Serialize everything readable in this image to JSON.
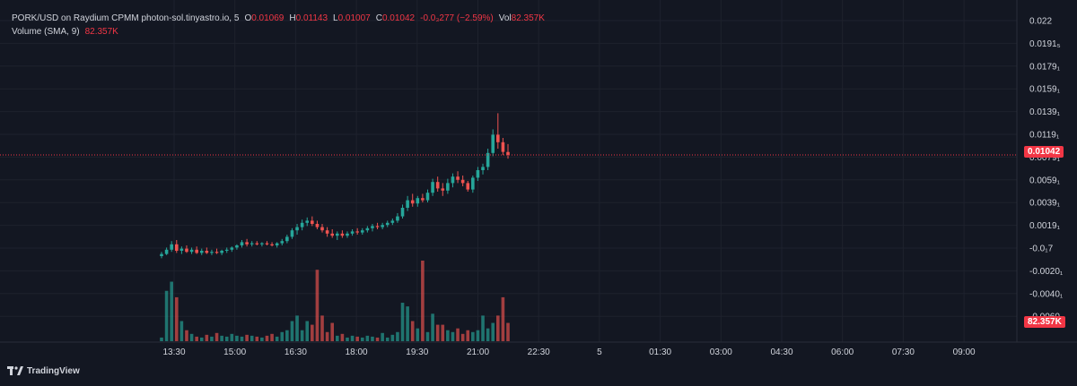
{
  "legend": {
    "symbol": "PORK/USD on Raydium CPMM photon-sol.tinyastro.io, 5",
    "o_label": "O",
    "o_value": "0.01069",
    "h_label": "H",
    "h_value": "0.01143",
    "l_label": "L",
    "l_value": "0.01007",
    "c_label": "C",
    "c_value": "0.01042",
    "change": "-0.0₃277 (−2.59%)",
    "vol_label": "Vol",
    "vol_value": "82.357K",
    "volume_label": "Volume (SMA, 9)",
    "volume_value": "82.357K"
  },
  "brand": {
    "name": "TradingView"
  },
  "price_axis": {
    "labels": [
      "0.022",
      "0.0191₅",
      "0.0179₁",
      "0.0159₁",
      "0.0139₁",
      "0.0119₁",
      "0.0079₁",
      "0.0059₁",
      "0.0039₁",
      "0.0019₁",
      "-0.0₁7",
      "-0.0020₁",
      "-0.0040₁",
      "-0.0060₁"
    ],
    "current_price": "0.01042",
    "volume_tag": "82.357K"
  },
  "time_axis": {
    "labels": [
      "13:30",
      "15:00",
      "16:30",
      "18:00",
      "19:30",
      "21:00",
      "22:30",
      "5",
      "01:30",
      "03:00",
      "04:30",
      "06:00",
      "07:30",
      "09:00"
    ]
  },
  "colors": {
    "up": "#26a69a",
    "down": "#ef5350",
    "background": "#131722",
    "grid": "#1e222d",
    "accent": "#f23645"
  },
  "chart_data": {
    "type": "candlestick",
    "interval": "5",
    "title": "PORK/USD on Raydium CPMM photon-sol.tinyastro.io, 5",
    "y_axis": {
      "min": -0.0065,
      "max": 0.023
    },
    "candles": [
      {
        "o": 0.001,
        "h": 0.0014,
        "l": 0.0008,
        "c": 0.0012
      },
      {
        "o": 0.0012,
        "h": 0.0018,
        "l": 0.0011,
        "c": 0.0016
      },
      {
        "o": 0.0016,
        "h": 0.0024,
        "l": 0.0014,
        "c": 0.0021
      },
      {
        "o": 0.0021,
        "h": 0.0025,
        "l": 0.0013,
        "c": 0.0015
      },
      {
        "o": 0.0015,
        "h": 0.0019,
        "l": 0.0012,
        "c": 0.0017
      },
      {
        "o": 0.0017,
        "h": 0.002,
        "l": 0.0013,
        "c": 0.0014
      },
      {
        "o": 0.0014,
        "h": 0.0018,
        "l": 0.0012,
        "c": 0.0016
      },
      {
        "o": 0.0016,
        "h": 0.0019,
        "l": 0.0012,
        "c": 0.0013
      },
      {
        "o": 0.0013,
        "h": 0.0017,
        "l": 0.0011,
        "c": 0.0015
      },
      {
        "o": 0.0015,
        "h": 0.0018,
        "l": 0.0012,
        "c": 0.0013
      },
      {
        "o": 0.0013,
        "h": 0.0016,
        "l": 0.0011,
        "c": 0.0014
      },
      {
        "o": 0.0014,
        "h": 0.0017,
        "l": 0.0012,
        "c": 0.0013
      },
      {
        "o": 0.0013,
        "h": 0.0016,
        "l": 0.0011,
        "c": 0.0015
      },
      {
        "o": 0.0015,
        "h": 0.0018,
        "l": 0.0013,
        "c": 0.0016
      },
      {
        "o": 0.0016,
        "h": 0.0019,
        "l": 0.0014,
        "c": 0.0018
      },
      {
        "o": 0.0018,
        "h": 0.0021,
        "l": 0.0016,
        "c": 0.002
      },
      {
        "o": 0.002,
        "h": 0.0025,
        "l": 0.0018,
        "c": 0.0023
      },
      {
        "o": 0.0023,
        "h": 0.0026,
        "l": 0.0019,
        "c": 0.0021
      },
      {
        "o": 0.0021,
        "h": 0.0024,
        "l": 0.0019,
        "c": 0.0022
      },
      {
        "o": 0.0022,
        "h": 0.0024,
        "l": 0.002,
        "c": 0.0021
      },
      {
        "o": 0.0021,
        "h": 0.0023,
        "l": 0.0019,
        "c": 0.0022
      },
      {
        "o": 0.0022,
        "h": 0.0024,
        "l": 0.002,
        "c": 0.0021
      },
      {
        "o": 0.0021,
        "h": 0.0023,
        "l": 0.0019,
        "c": 0.002
      },
      {
        "o": 0.002,
        "h": 0.0023,
        "l": 0.0018,
        "c": 0.0022
      },
      {
        "o": 0.0022,
        "h": 0.0026,
        "l": 0.002,
        "c": 0.0024
      },
      {
        "o": 0.0024,
        "h": 0.003,
        "l": 0.0022,
        "c": 0.0028
      },
      {
        "o": 0.0028,
        "h": 0.0036,
        "l": 0.0026,
        "c": 0.0034
      },
      {
        "o": 0.0034,
        "h": 0.004,
        "l": 0.003,
        "c": 0.0037
      },
      {
        "o": 0.0037,
        "h": 0.0044,
        "l": 0.0034,
        "c": 0.0041
      },
      {
        "o": 0.0041,
        "h": 0.0046,
        "l": 0.0038,
        "c": 0.0043
      },
      {
        "o": 0.0043,
        "h": 0.0047,
        "l": 0.0038,
        "c": 0.004
      },
      {
        "o": 0.004,
        "h": 0.0043,
        "l": 0.0035,
        "c": 0.0037
      },
      {
        "o": 0.0037,
        "h": 0.004,
        "l": 0.0032,
        "c": 0.0034
      },
      {
        "o": 0.0034,
        "h": 0.0037,
        "l": 0.0028,
        "c": 0.0031
      },
      {
        "o": 0.0031,
        "h": 0.0035,
        "l": 0.0027,
        "c": 0.0029
      },
      {
        "o": 0.0029,
        "h": 0.0033,
        "l": 0.0025,
        "c": 0.0031
      },
      {
        "o": 0.0031,
        "h": 0.0034,
        "l": 0.0027,
        "c": 0.0029
      },
      {
        "o": 0.0029,
        "h": 0.0033,
        "l": 0.0027,
        "c": 0.0031
      },
      {
        "o": 0.0031,
        "h": 0.0035,
        "l": 0.0029,
        "c": 0.0033
      },
      {
        "o": 0.0033,
        "h": 0.0036,
        "l": 0.003,
        "c": 0.0032
      },
      {
        "o": 0.0032,
        "h": 0.0036,
        "l": 0.003,
        "c": 0.0034
      },
      {
        "o": 0.0034,
        "h": 0.0038,
        "l": 0.0032,
        "c": 0.0036
      },
      {
        "o": 0.0036,
        "h": 0.004,
        "l": 0.0033,
        "c": 0.0038
      },
      {
        "o": 0.0038,
        "h": 0.0041,
        "l": 0.0035,
        "c": 0.0037
      },
      {
        "o": 0.0037,
        "h": 0.0041,
        "l": 0.0035,
        "c": 0.0039
      },
      {
        "o": 0.0039,
        "h": 0.0043,
        "l": 0.0037,
        "c": 0.0041
      },
      {
        "o": 0.0041,
        "h": 0.0045,
        "l": 0.0039,
        "c": 0.0043
      },
      {
        "o": 0.0043,
        "h": 0.005,
        "l": 0.0041,
        "c": 0.0047
      },
      {
        "o": 0.0047,
        "h": 0.0058,
        "l": 0.0045,
        "c": 0.0055
      },
      {
        "o": 0.0055,
        "h": 0.0066,
        "l": 0.0052,
        "c": 0.0062
      },
      {
        "o": 0.0062,
        "h": 0.0068,
        "l": 0.0056,
        "c": 0.0059
      },
      {
        "o": 0.0059,
        "h": 0.0066,
        "l": 0.0056,
        "c": 0.0064
      },
      {
        "o": 0.0064,
        "h": 0.0068,
        "l": 0.006,
        "c": 0.0062
      },
      {
        "o": 0.0062,
        "h": 0.0072,
        "l": 0.006,
        "c": 0.0069
      },
      {
        "o": 0.0069,
        "h": 0.0082,
        "l": 0.0066,
        "c": 0.0079
      },
      {
        "o": 0.0079,
        "h": 0.0084,
        "l": 0.007,
        "c": 0.0073
      },
      {
        "o": 0.0073,
        "h": 0.0078,
        "l": 0.0066,
        "c": 0.0071
      },
      {
        "o": 0.0071,
        "h": 0.0082,
        "l": 0.0068,
        "c": 0.0078
      },
      {
        "o": 0.0078,
        "h": 0.0087,
        "l": 0.0074,
        "c": 0.0084
      },
      {
        "o": 0.0084,
        "h": 0.0089,
        "l": 0.0078,
        "c": 0.0081
      },
      {
        "o": 0.0081,
        "h": 0.0085,
        "l": 0.0075,
        "c": 0.0078
      },
      {
        "o": 0.0078,
        "h": 0.008,
        "l": 0.007,
        "c": 0.0072
      },
      {
        "o": 0.0072,
        "h": 0.0085,
        "l": 0.0069,
        "c": 0.0083
      },
      {
        "o": 0.0083,
        "h": 0.0093,
        "l": 0.008,
        "c": 0.009
      },
      {
        "o": 0.009,
        "h": 0.0096,
        "l": 0.0086,
        "c": 0.0093
      },
      {
        "o": 0.0093,
        "h": 0.011,
        "l": 0.009,
        "c": 0.0106
      },
      {
        "o": 0.0106,
        "h": 0.0128,
        "l": 0.0103,
        "c": 0.0123
      },
      {
        "o": 0.0123,
        "h": 0.0143,
        "l": 0.011,
        "c": 0.0116
      },
      {
        "o": 0.0116,
        "h": 0.012,
        "l": 0.0104,
        "c": 0.0107
      },
      {
        "o": 0.01069,
        "h": 0.01143,
        "l": 0.01007,
        "c": 0.01042
      }
    ],
    "volume": [
      4,
      55,
      65,
      48,
      22,
      12,
      8,
      5,
      4,
      7,
      5,
      9,
      6,
      5,
      8,
      6,
      5,
      7,
      6,
      5,
      4,
      6,
      8,
      5,
      10,
      12,
      22,
      28,
      12,
      22,
      18,
      78,
      28,
      10,
      20,
      6,
      8,
      4,
      6,
      5,
      4,
      6,
      5,
      4,
      9,
      4,
      7,
      10,
      42,
      38,
      22,
      14,
      88,
      10,
      30,
      18,
      18,
      12,
      10,
      14,
      8,
      12,
      10,
      12,
      28,
      14,
      20,
      28,
      48,
      20
    ]
  }
}
